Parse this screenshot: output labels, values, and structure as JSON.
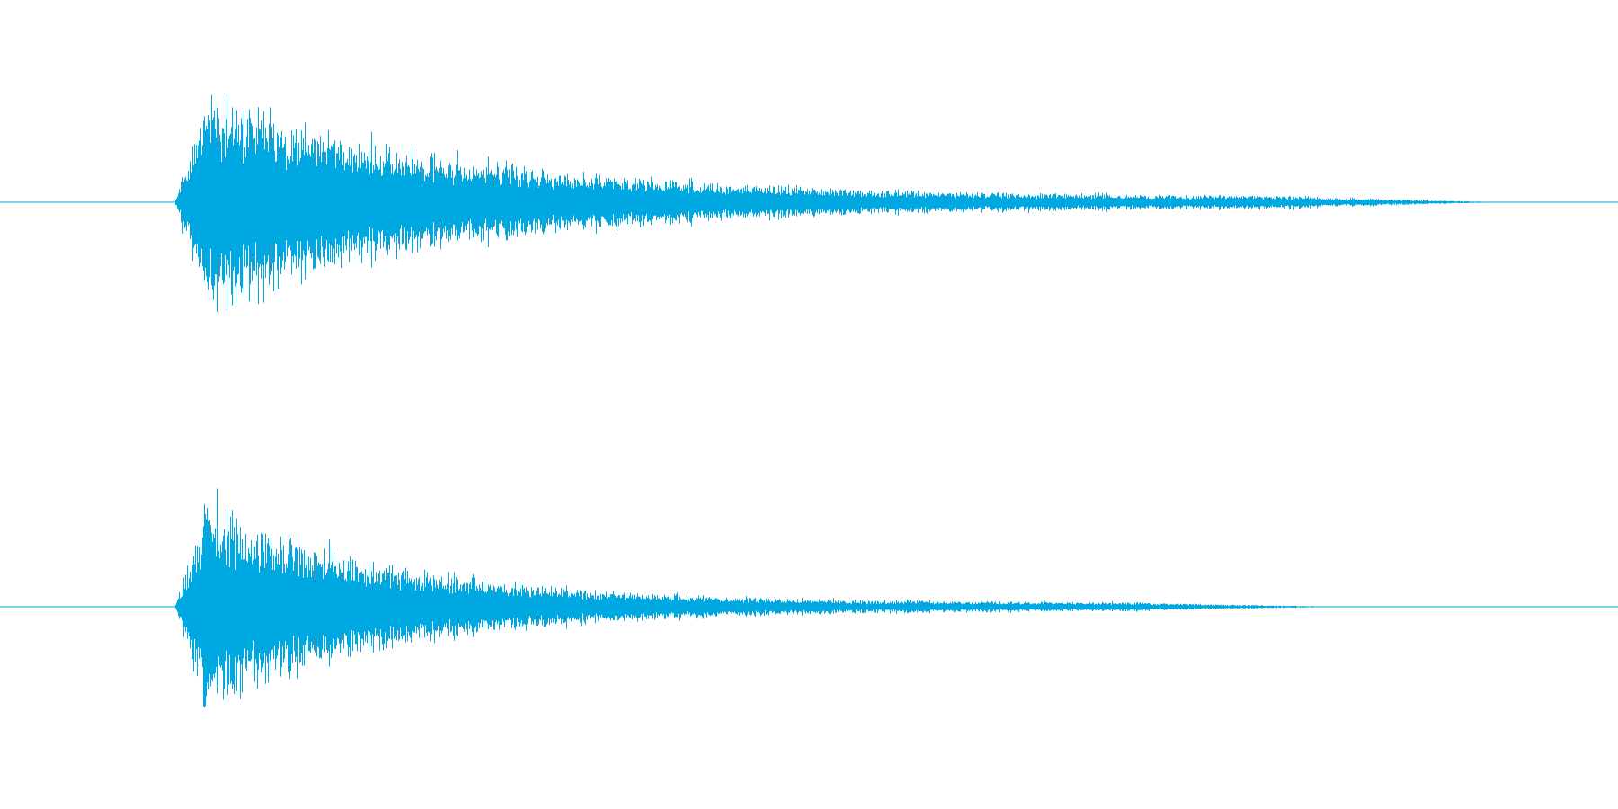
{
  "waveform": {
    "color": "#00a8e1",
    "background": "#ffffff",
    "channels": [
      {
        "name": "",
        "onset": 0.108,
        "rise_end": 0.125,
        "decay_end": 0.81,
        "peak_amplitude": 0.98,
        "decay_rate": 4.4,
        "tail_amplitude": 0.04,
        "seed": 11
      },
      {
        "name": "",
        "onset": 0.108,
        "rise_end": 0.125,
        "decay_end": 0.71,
        "peak_amplitude": 0.98,
        "decay_rate": 5.1,
        "tail_amplitude": 0.03,
        "seed": 29
      }
    ]
  }
}
